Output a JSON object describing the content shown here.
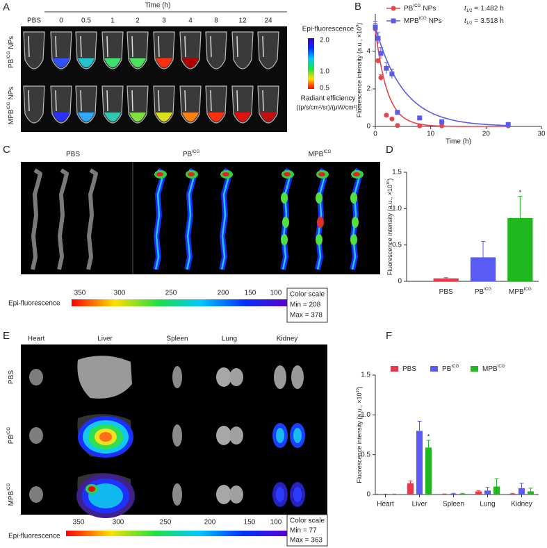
{
  "panel_a": {
    "letter": "A",
    "axis_title": "Time (h)",
    "columns": [
      "PBS",
      "0",
      "0.5",
      "1",
      "2",
      "3",
      "4",
      "8",
      "12",
      "24"
    ],
    "rows": [
      {
        "name": "PB",
        "sup": "ICG",
        "suffix": "NPs"
      },
      {
        "name": "MPB",
        "sup": "ICG",
        "suffix": "NPs"
      }
    ],
    "colorbar": {
      "title": "Epi-fluorescence",
      "ticks": [
        "2.0",
        "1.0",
        "0.5"
      ],
      "unit_title": "Radiant efficiency",
      "unit": "((p/s/cm²/sr)/(μW/cm²))"
    }
  },
  "panel_c": {
    "letter": "C",
    "groups": [
      {
        "name": "PBS"
      },
      {
        "name": "PB",
        "sup": "ICG"
      },
      {
        "name": "MPB",
        "sup": "ICG"
      }
    ],
    "colorbar": {
      "title": "Epi-fluorescence",
      "ticks": [
        "350",
        "300",
        "250",
        "200",
        "150",
        "100"
      ],
      "scale_title": "Color scale",
      "min": "Min = 208",
      "max": "Max = 378"
    }
  },
  "panel_e": {
    "letter": "E",
    "organs": [
      "Heart",
      "Liver",
      "Spleen",
      "Lung",
      "Kidney"
    ],
    "rows": [
      {
        "name": "PBS"
      },
      {
        "name": "PB",
        "sup": "ICG"
      },
      {
        "name": "MPB",
        "sup": "ICG"
      }
    ],
    "colorbar": {
      "title": "Epi-fluorescence",
      "ticks": [
        "350",
        "300",
        "250",
        "200",
        "150",
        "100"
      ],
      "scale_title": "Color scale",
      "min": "Min = 77",
      "max": "Max = 363"
    }
  },
  "chart_data": [
    {
      "type": "line",
      "letter": "B",
      "x": [
        0,
        0.5,
        1,
        2,
        3,
        4,
        8,
        12,
        24
      ],
      "series": [
        {
          "name": "PB",
          "sup": "ICG",
          "suffix": "NPs",
          "color": "#e8454b",
          "marker": "circle",
          "values": [
            5.2,
            3.5,
            2.6,
            0.6,
            0.4,
            0.05,
            0.03,
            0.03,
            0.03
          ],
          "errors": [
            0.3,
            0.1,
            0.15,
            0.05,
            0.05,
            0.03,
            0.02,
            0.02,
            0.02
          ],
          "half_life": 1.482
        },
        {
          "name": "MPB",
          "sup": "ICG",
          "suffix": "NPs",
          "color": "#5b5be8",
          "marker": "square",
          "values": [
            5.3,
            4.7,
            3.9,
            3.1,
            2.8,
            0.75,
            0.45,
            0.25,
            0.1
          ],
          "errors": [
            0.3,
            0.3,
            0.3,
            0.3,
            0.25,
            0.05,
            0.05,
            0.05,
            0.05
          ],
          "half_life": 3.518
        }
      ],
      "half_life_symbol": "t",
      "half_life_subscript": "1/2",
      "half_life_equals": "=",
      "half_life_unit": "h",
      "xlabel": "Time (h)",
      "ylabel": {
        "text": "Fluorescence intensity (a.u., ×10",
        "sup": "9",
        "end": ")"
      },
      "xlim": [
        0,
        30
      ],
      "xticks": [
        0,
        10,
        20,
        30
      ],
      "ylim": [
        0,
        6
      ],
      "yticks": [
        0,
        2,
        4
      ]
    },
    {
      "type": "bar",
      "letter": "D",
      "categories": [
        "PBS",
        "PB",
        "MPB"
      ],
      "category_sups": [
        null,
        "ICG",
        "ICG"
      ],
      "values": [
        0.04,
        0.33,
        0.87
      ],
      "errors": [
        0.01,
        0.22,
        0.3
      ],
      "colors": [
        "#e8394a",
        "#5a5af5",
        "#1fb81f"
      ],
      "significance": [
        null,
        null,
        "*"
      ],
      "ylabel": {
        "text": "Fluorescence intensity (a.u., ×10",
        "sup": "10",
        "end": ")"
      },
      "ylim": [
        0,
        1.5
      ],
      "yticks": [
        0,
        0.5,
        {
          "value": 1,
          "label": "1.0"
        },
        1.5
      ]
    },
    {
      "type": "grouped_bar",
      "letter": "F",
      "categories": [
        "Heart",
        "Liver",
        "Spleen",
        "Lung",
        "Kidney"
      ],
      "series": [
        {
          "name": "PBS",
          "color": "#e8394a",
          "values": [
            0.003,
            0.14,
            0.005,
            0.04,
            0.01
          ],
          "errors": [
            0.002,
            0.03,
            0.003,
            0.01,
            0.005
          ]
        },
        {
          "name": "PB",
          "sup": "ICG",
          "color": "#5a5af5",
          "values": [
            0.003,
            0.8,
            0.01,
            0.05,
            0.08
          ],
          "errors": [
            0.002,
            0.12,
            0.005,
            0.04,
            0.06
          ]
        },
        {
          "name": "MPB",
          "sup": "ICG",
          "color": "#1fb81f",
          "values": [
            0.004,
            0.59,
            0.01,
            0.1,
            0.04
          ],
          "errors": [
            0.002,
            0.09,
            0.005,
            0.1,
            0.04
          ],
          "significance": [
            null,
            "*",
            null,
            null,
            null
          ]
        }
      ],
      "ylabel": {
        "text": "Fluorescence intensity (a.u., ×10",
        "sup": "10",
        "end": ")"
      },
      "ylim": [
        0,
        1.5
      ],
      "yticks": [
        0,
        0.5,
        {
          "value": 1,
          "label": "1.0"
        },
        1.5
      ]
    }
  ]
}
